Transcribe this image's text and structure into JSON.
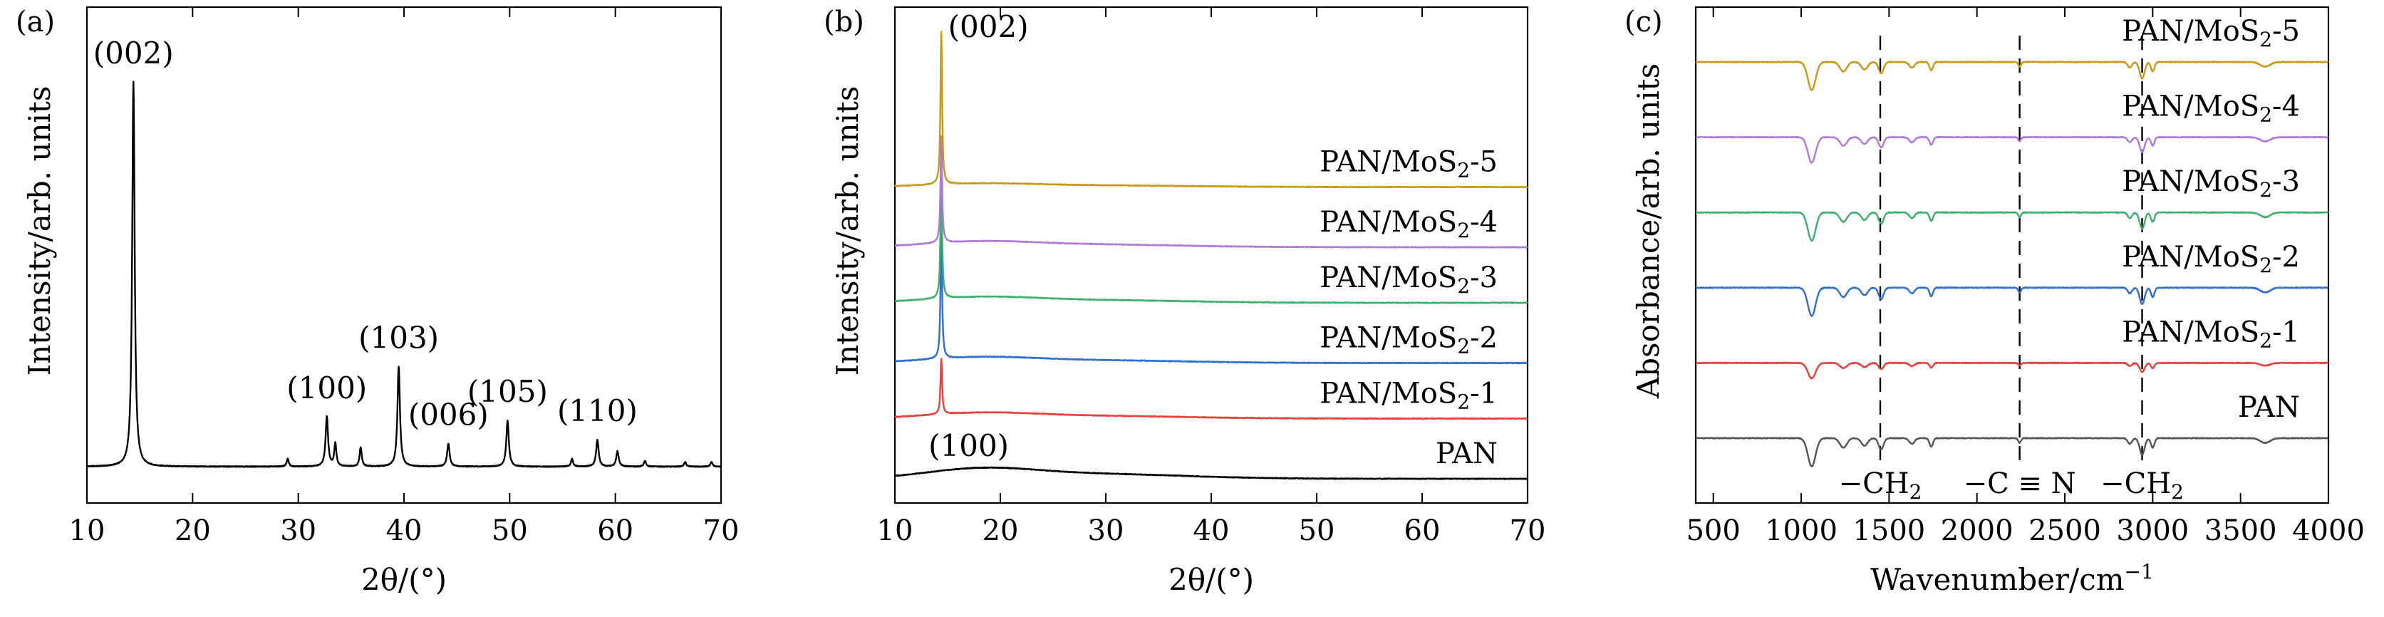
{
  "chart_data": [
    {
      "panel": "(a)",
      "type": "line",
      "xlabel": "2θ/(°)",
      "ylabel": "Intensity/arb. units",
      "xlim": [
        10,
        70
      ],
      "xticks": [
        "10",
        "20",
        "30",
        "40",
        "50",
        "60",
        "70"
      ],
      "baseline": 0.03,
      "peaks": [
        {
          "x": 14.4,
          "h": 1.0,
          "w": 0.14
        },
        {
          "x": 29.0,
          "h": 0.02,
          "w": 0.12
        },
        {
          "x": 32.7,
          "h": 0.13,
          "w": 0.14
        },
        {
          "x": 33.5,
          "h": 0.06,
          "w": 0.12
        },
        {
          "x": 35.9,
          "h": 0.05,
          "w": 0.12
        },
        {
          "x": 39.5,
          "h": 0.26,
          "w": 0.14
        },
        {
          "x": 44.2,
          "h": 0.06,
          "w": 0.14
        },
        {
          "x": 49.8,
          "h": 0.12,
          "w": 0.14
        },
        {
          "x": 55.9,
          "h": 0.02,
          "w": 0.12
        },
        {
          "x": 58.3,
          "h": 0.07,
          "w": 0.14
        },
        {
          "x": 60.2,
          "h": 0.04,
          "w": 0.14
        },
        {
          "x": 62.8,
          "h": 0.015,
          "w": 0.12
        },
        {
          "x": 66.6,
          "h": 0.012,
          "w": 0.12
        },
        {
          "x": 69.1,
          "h": 0.012,
          "w": 0.12
        }
      ],
      "annotations": [
        {
          "text": "(002)",
          "x": 14.4,
          "level": 1.0
        },
        {
          "text": "(100)",
          "x": 32.7,
          "level": 0.13
        },
        {
          "text": "(103)",
          "x": 39.5,
          "level": 0.26
        },
        {
          "text": "(006)",
          "x": 44.2,
          "level": 0.06
        },
        {
          "text": "(105)",
          "x": 49.8,
          "level": 0.12
        },
        {
          "text": "(110)",
          "x": 58.3,
          "level": 0.07
        }
      ],
      "color": "#000000"
    },
    {
      "panel": "(b)",
      "type": "line",
      "xlabel": "2θ/(°)",
      "ylabel": "Intensity/arb. units",
      "xlim": [
        10,
        70
      ],
      "xticks": [
        "10",
        "20",
        "30",
        "40",
        "50",
        "60",
        "70"
      ],
      "series": [
        {
          "name": "PAN",
          "label_main": "PAN",
          "label_sub": "",
          "label_tail": "",
          "offset": 0.0,
          "peak002": 0.0,
          "hump": 0.018,
          "color": "#000000"
        },
        {
          "name": "PAN/MoS2-1",
          "label_main": "PAN/MoS",
          "label_sub": "2",
          "label_tail": "-1",
          "offset": 0.13,
          "peak002": 0.12,
          "hump": 0.01,
          "color": "#e8403f"
        },
        {
          "name": "PAN/MoS2-2",
          "label_main": "PAN/MoS",
          "label_sub": "2",
          "label_tail": "-2",
          "offset": 0.25,
          "peak002": 0.27,
          "hump": 0.01,
          "color": "#2f6fcf"
        },
        {
          "name": "PAN/MoS2-3",
          "label_main": "PAN/MoS",
          "label_sub": "2",
          "label_tail": "-3",
          "offset": 0.38,
          "peak002": 0.27,
          "hump": 0.01,
          "color": "#3fae6e"
        },
        {
          "name": "PAN/MoS2-4",
          "label_main": "PAN/MoS",
          "label_sub": "2",
          "label_tail": "-4",
          "offset": 0.5,
          "peak002": 0.23,
          "hump": 0.01,
          "color": "#b07ad8"
        },
        {
          "name": "PAN/MoS2-5",
          "label_main": "PAN/MoS",
          "label_sub": "2",
          "label_tail": "-5",
          "offset": 0.63,
          "peak002": 0.33,
          "hump": 0.006,
          "color": "#c79a16"
        }
      ],
      "annotations": [
        {
          "text": "(002)",
          "x": 14.4
        },
        {
          "text": "(100)",
          "x": 17.0
        }
      ]
    },
    {
      "panel": "(c)",
      "type": "line",
      "xlabel": "Wavenumber/cm",
      "xlabel_sup": "−1",
      "ylabel": "Absorbance/arb. units",
      "xlim": [
        400,
        4000
      ],
      "xticks": [
        "500",
        "1000",
        "1500",
        "2000",
        "2500",
        "3000",
        "3500",
        "4000"
      ],
      "series": [
        {
          "name": "PAN",
          "label_main": "PAN",
          "label_sub": "",
          "label_tail": "",
          "offset": 0.0,
          "scale": 1.0,
          "color": "#555555"
        },
        {
          "name": "PAN/MoS2-1",
          "label_main": "PAN/MoS",
          "label_sub": "2",
          "label_tail": "-1",
          "offset": 0.16,
          "scale": 0.55,
          "color": "#e8403f"
        },
        {
          "name": "PAN/MoS2-2",
          "label_main": "PAN/MoS",
          "label_sub": "2",
          "label_tail": "-2",
          "offset": 0.32,
          "scale": 1.0,
          "color": "#2f6fcf"
        },
        {
          "name": "PAN/MoS2-3",
          "label_main": "PAN/MoS",
          "label_sub": "2",
          "label_tail": "-3",
          "offset": 0.48,
          "scale": 1.0,
          "color": "#3fae6e"
        },
        {
          "name": "PAN/MoS2-4",
          "label_main": "PAN/MoS",
          "label_sub": "2",
          "label_tail": "-4",
          "offset": 0.64,
          "scale": 0.9,
          "color": "#b07ad8"
        },
        {
          "name": "PAN/MoS2-5",
          "label_main": "PAN/MoS",
          "label_sub": "2",
          "label_tail": "-5",
          "offset": 0.8,
          "scale": 1.0,
          "color": "#c79a16"
        }
      ],
      "bands": [
        {
          "x": 1060,
          "depth": 0.06,
          "w": 22
        },
        {
          "x": 1240,
          "depth": 0.02,
          "w": 20
        },
        {
          "x": 1360,
          "depth": 0.016,
          "w": 18
        },
        {
          "x": 1455,
          "depth": 0.024,
          "w": 14
        },
        {
          "x": 1630,
          "depth": 0.012,
          "w": 15
        },
        {
          "x": 1740,
          "depth": 0.018,
          "w": 10
        },
        {
          "x": 2243,
          "depth": 0.01,
          "w": 8
        },
        {
          "x": 2870,
          "depth": 0.012,
          "w": 12
        },
        {
          "x": 2940,
          "depth": 0.035,
          "w": 14
        },
        {
          "x": 3000,
          "depth": 0.02,
          "w": 10
        },
        {
          "x": 3640,
          "depth": 0.01,
          "w": 28
        }
      ],
      "dashed_lines": [
        1450,
        2243,
        2940
      ],
      "band_labels": [
        {
          "pre": "−CH",
          "sub": "2",
          "post": "",
          "x": 1450
        },
        {
          "pre": "−C",
          "sub": "",
          "post": "N",
          "triple": true,
          "x": 2243
        },
        {
          "pre": "−CH",
          "sub": "2",
          "post": "",
          "x": 2940
        }
      ]
    }
  ]
}
